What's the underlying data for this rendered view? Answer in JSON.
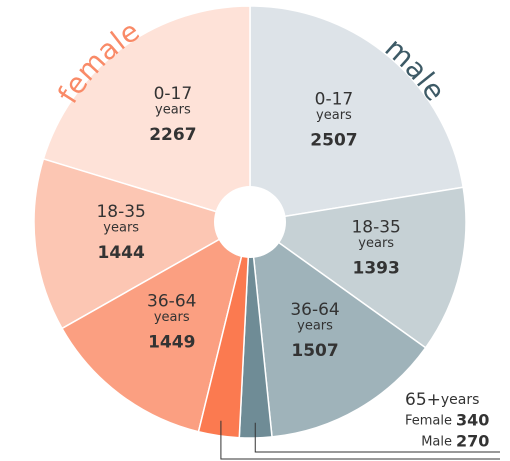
{
  "chart_data": {
    "type": "pie",
    "unit": "years",
    "series": [
      {
        "name": "male",
        "color": "#3d5a66",
        "direction": "clockwise",
        "categories": [
          "0-17",
          "18-35",
          "36-64",
          "65+"
        ],
        "values": [
          2507,
          1393,
          1507,
          270
        ],
        "colors": [
          "#dde3e8",
          "#c6d1d5",
          "#9fb3ba",
          "#6f8c96"
        ]
      },
      {
        "name": "female",
        "color": "#f98a67",
        "direction": "counterclockwise",
        "categories": [
          "0-17",
          "18-35",
          "36-64",
          "65+"
        ],
        "values": [
          2267,
          1444,
          1449,
          340
        ],
        "colors": [
          "#fee2d8",
          "#fcc6b3",
          "#fb9f81",
          "#fb7a50"
        ]
      }
    ],
    "annotation": {
      "title": "65+",
      "female_label": "Female",
      "male_label": "Male"
    }
  }
}
